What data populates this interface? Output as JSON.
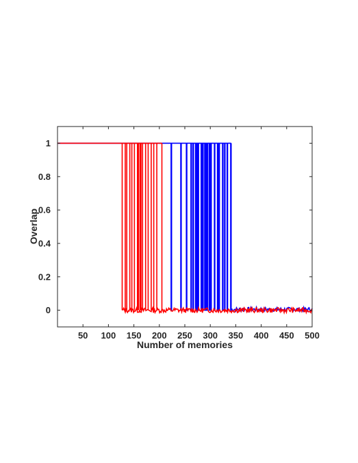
{
  "chart_data": {
    "type": "line",
    "xlabel": "Number of memories",
    "ylabel": "Overlap",
    "xlim": [
      0,
      500
    ],
    "ylim": [
      -0.1,
      1.1
    ],
    "xticks": [
      50,
      100,
      150,
      200,
      250,
      300,
      350,
      400,
      450,
      500
    ],
    "yticks": [
      0,
      0.2,
      0.4,
      0.6,
      0.8,
      1
    ],
    "ytick_labels": [
      "0",
      "0.2",
      "0.4",
      "0.6",
      "0.8",
      "1"
    ],
    "grid": false,
    "legend": "none",
    "series": [
      {
        "color": "#0000ff",
        "x": [
          0,
          223,
          224,
          242,
          243,
          253,
          254,
          262,
          263,
          266,
          267,
          271,
          272,
          274,
          275,
          276,
          277,
          282,
          283,
          285,
          286,
          289,
          290,
          291,
          292,
          294,
          295,
          298,
          299,
          301,
          302,
          308,
          309,
          314,
          315,
          317,
          318,
          324,
          325,
          328,
          329,
          333,
          334,
          340,
          341,
          500
        ],
        "y": [
          1,
          1,
          0,
          0,
          1,
          1,
          0,
          0,
          1,
          1,
          0,
          0,
          1,
          1,
          0,
          0,
          1,
          1,
          0,
          0,
          1,
          1,
          0,
          0,
          1,
          1,
          0,
          0,
          1,
          1,
          0,
          0,
          1,
          1,
          0,
          0,
          1,
          1,
          0,
          0,
          1,
          1,
          0,
          0,
          1,
          0.01
        ],
        "step_pairs": [
          [
            223,
            224
          ],
          [
            242,
            243
          ],
          [
            253,
            254
          ],
          [
            262,
            263
          ],
          [
            266,
            267
          ],
          [
            271,
            272
          ],
          [
            274,
            275
          ],
          [
            276,
            277
          ],
          [
            282,
            283
          ],
          [
            285,
            286
          ],
          [
            289,
            290
          ],
          [
            291,
            292
          ],
          [
            294,
            295
          ],
          [
            298,
            299
          ],
          [
            301,
            302
          ],
          [
            308,
            309
          ],
          [
            314,
            315
          ],
          [
            317,
            318
          ],
          [
            324,
            325
          ],
          [
            328,
            329
          ],
          [
            333,
            334
          ],
          [
            340,
            341
          ]
        ]
      },
      {
        "color": "#ff0000",
        "x": [
          0,
          127,
          133,
          136,
          142,
          146,
          151,
          157,
          159,
          162,
          164,
          167,
          173,
          178,
          184,
          189,
          195,
          205,
          500
        ],
        "y": [
          1,
          1,
          0,
          0,
          0,
          0,
          0,
          0,
          0,
          0,
          0,
          0,
          0,
          0,
          0,
          0,
          0,
          0,
          0
        ],
        "drops": [
          127,
          133,
          136,
          142,
          146,
          151,
          157,
          159,
          162,
          164,
          167,
          173,
          178,
          184,
          189,
          195,
          205
        ]
      }
    ]
  }
}
